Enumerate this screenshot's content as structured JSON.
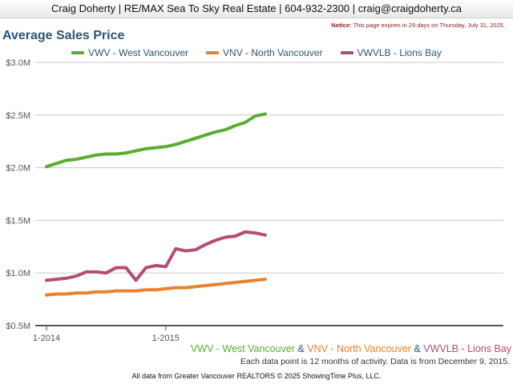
{
  "header": {
    "text": "Craig Doherty | RE/MAX Sea To Sky Real Estate | 604-932-2300 | craig@craigdoherty.ca"
  },
  "notice": {
    "label": "Notice:",
    "text": "This page expires in 29 days on Thursday, July 31, 2025."
  },
  "footer": {
    "note": "Each data point is 12 months of activity. Data is from December 9, 2015.",
    "copyright": "All data from Greater Vancouver REALTORS © 2025 ShowingTime Plus, LLC.",
    "amp1": " & ",
    "amp2": " & "
  },
  "chart_data": {
    "type": "line",
    "title": "Average Sales Price",
    "x_tick_labels": [
      "1-2014",
      "1-2015"
    ],
    "x": [
      "2014-01",
      "2014-02",
      "2014-03",
      "2014-04",
      "2014-05",
      "2014-06",
      "2014-07",
      "2014-08",
      "2014-09",
      "2014-10",
      "2014-11",
      "2014-12",
      "2015-01",
      "2015-02",
      "2015-03",
      "2015-04",
      "2015-05",
      "2015-06",
      "2015-07",
      "2015-08",
      "2015-09",
      "2015-10",
      "2015-11"
    ],
    "y_tick_labels": [
      "$0.5M",
      "$1.0M",
      "$1.5M",
      "$2.0M",
      "$2.5M",
      "$3.0M"
    ],
    "y_ticks": [
      0.5,
      1.0,
      1.5,
      2.0,
      2.5,
      3.0
    ],
    "ylim": [
      0.5,
      3.0
    ],
    "grid": true,
    "legend_position": "top",
    "series": [
      {
        "name": "VWV - West Vancouver",
        "color": "#5aad31",
        "values": [
          2.01,
          2.04,
          2.07,
          2.08,
          2.1,
          2.12,
          2.13,
          2.13,
          2.14,
          2.16,
          2.18,
          2.19,
          2.2,
          2.22,
          2.25,
          2.28,
          2.31,
          2.34,
          2.36,
          2.4,
          2.43,
          2.49,
          2.51
        ]
      },
      {
        "name": "VNV - North Vancouver",
        "color": "#e8822e",
        "values": [
          0.79,
          0.8,
          0.8,
          0.81,
          0.81,
          0.82,
          0.82,
          0.83,
          0.83,
          0.83,
          0.84,
          0.84,
          0.85,
          0.86,
          0.86,
          0.87,
          0.88,
          0.89,
          0.9,
          0.91,
          0.92,
          0.93,
          0.94
        ]
      },
      {
        "name": "VWVLB - Lions Bay",
        "color": "#b64b73",
        "values": [
          0.93,
          0.94,
          0.95,
          0.97,
          1.01,
          1.01,
          1.0,
          1.05,
          1.05,
          0.93,
          1.05,
          1.07,
          1.06,
          1.23,
          1.21,
          1.22,
          1.27,
          1.31,
          1.34,
          1.35,
          1.39,
          1.38,
          1.36
        ]
      }
    ]
  }
}
